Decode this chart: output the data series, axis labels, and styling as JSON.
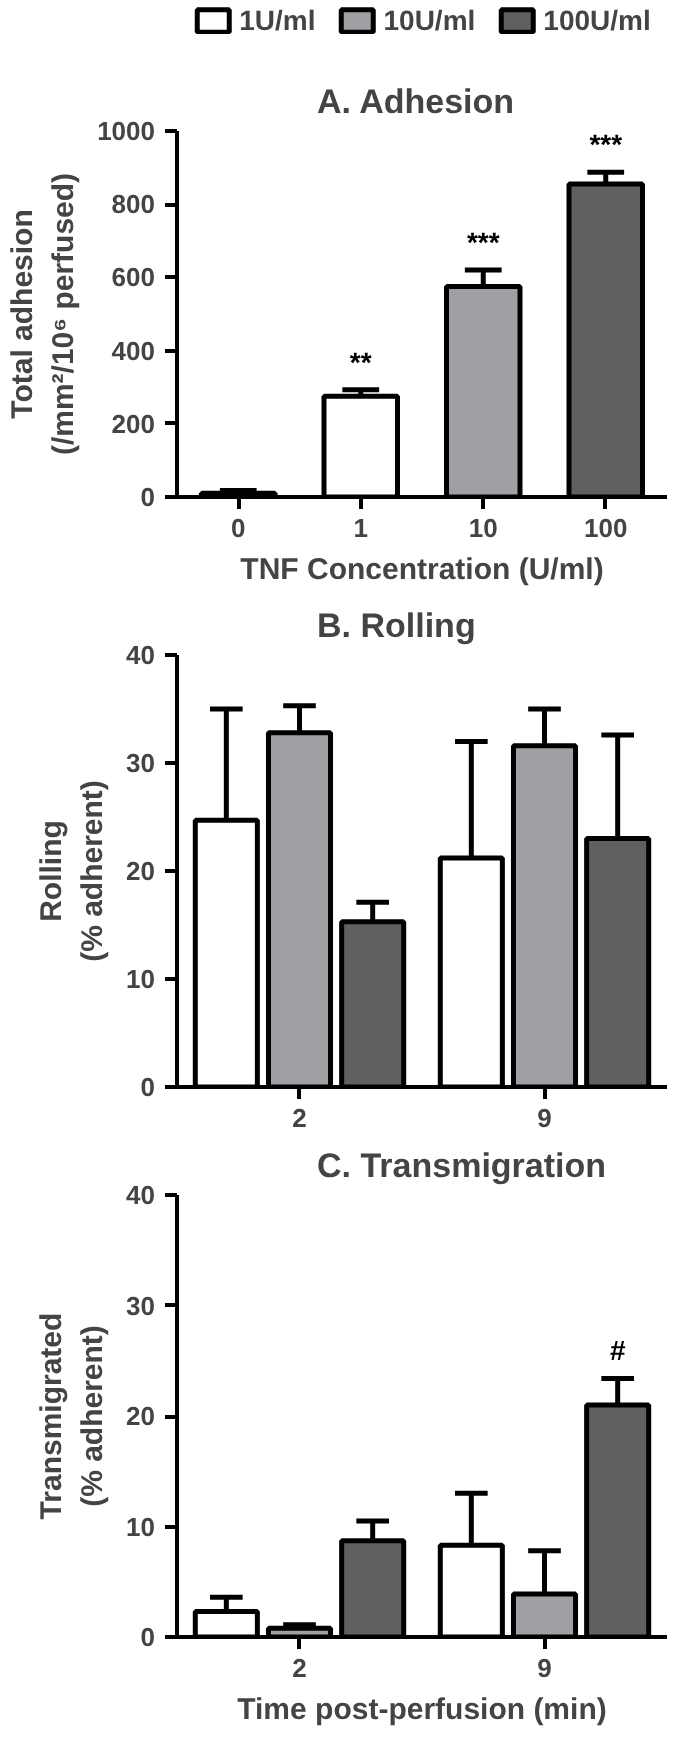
{
  "chart_data": [
    {
      "type": "bar",
      "title": "A. Adhesion",
      "xlabel": "TNF Concentration (U/ml)",
      "ylabel": "Total adhesion\n(/mm²/10⁶ perfused)",
      "categories": [
        "0",
        "1",
        "10",
        "100"
      ],
      "values": [
        10,
        275,
        575,
        855
      ],
      "errors": [
        8,
        18,
        45,
        32
      ],
      "colors": [
        "#404040",
        "#ffffff",
        "#a0a0a4",
        "#606060"
      ],
      "ylim": [
        0,
        1000
      ],
      "yticks": [
        0,
        200,
        400,
        600,
        800,
        1000
      ],
      "grid": false,
      "annotations": [
        {
          "text": "**",
          "x": "1",
          "y": 275
        },
        {
          "text": "***",
          "x": "10",
          "y": 575
        },
        {
          "text": "***",
          "x": "100",
          "y": 855
        }
      ]
    },
    {
      "type": "bar",
      "title": "B.  Rolling",
      "ylabel": "Rolling\n(% adherent)",
      "categories": [
        "2",
        "9"
      ],
      "legend": "top",
      "grid": false,
      "series": [
        {
          "name": "1U/ml",
          "color": "#ffffff",
          "values": [
            24.7,
            21.2
          ],
          "errors": [
            10.3,
            10.8
          ]
        },
        {
          "name": "10U/ml",
          "color": "#a0a0a4",
          "values": [
            32.8,
            31.6
          ],
          "errors": [
            2.5,
            3.4
          ]
        },
        {
          "name": "100U/ml",
          "color": "#606060",
          "values": [
            15.3,
            23.0
          ],
          "errors": [
            1.8,
            9.6
          ]
        }
      ],
      "ylim": [
        0,
        40
      ],
      "yticks": [
        0,
        10,
        20,
        30,
        40
      ]
    },
    {
      "type": "bar",
      "title": "C. Transmigration",
      "xlabel": "Time post-perfusion (min)",
      "ylabel": "Transmigrated\n(% adherent)",
      "categories": [
        "2",
        "9"
      ],
      "grid": false,
      "series": [
        {
          "color": "#ffffff",
          "values": [
            2.3,
            8.3
          ],
          "errors": [
            1.3,
            4.7
          ]
        },
        {
          "color": "#a0a0a4",
          "values": [
            0.8,
            3.9
          ],
          "errors": [
            0.3,
            3.9
          ]
        },
        {
          "color": "#606060",
          "values": [
            8.7,
            21.0
          ],
          "errors": [
            1.8,
            2.4
          ]
        }
      ],
      "ylim": [
        0,
        40
      ],
      "yticks": [
        0,
        10,
        20,
        30,
        40
      ],
      "annotations": [
        "#"
      ]
    }
  ]
}
